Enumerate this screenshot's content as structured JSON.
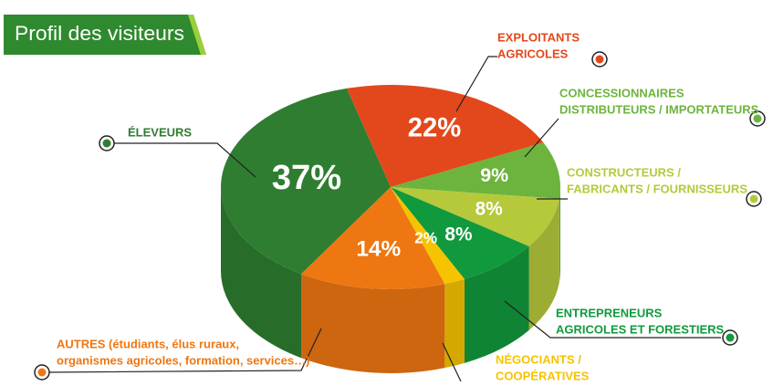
{
  "chart_data": {
    "type": "pie",
    "title": "Profil des visiteurs",
    "categories": [
      [
        "EXPLOITANTS",
        "AGRICOLES"
      ],
      [
        "CONCESSIONNAIRES",
        "DISTRIBUTEURS / IMPORTATEURS"
      ],
      [
        "CONSTRUCTEURS /",
        "FABRICANTS / FOURNISSEURS"
      ],
      [
        "ENTREPRENEURS",
        "AGRICOLES ET FORESTIERS"
      ],
      [
        "NÉGOCIANTS /",
        "COOPÉRATIVES"
      ],
      [
        "AUTRES (étudiants, élus ruraux,",
        "organismes agricoles, formation, services…)"
      ],
      [
        "ÉLEVEURS"
      ]
    ],
    "values": [
      22,
      9,
      8,
      8,
      2,
      14,
      37
    ],
    "value_labels": [
      "22%",
      "9%",
      "8%",
      "8%",
      "2%",
      "14%",
      "37%"
    ],
    "colors": [
      "#e3481c",
      "#6db43e",
      "#b6c93b",
      "#119a3d",
      "#f6c300",
      "#ee7711",
      "#2f7d31"
    ]
  }
}
